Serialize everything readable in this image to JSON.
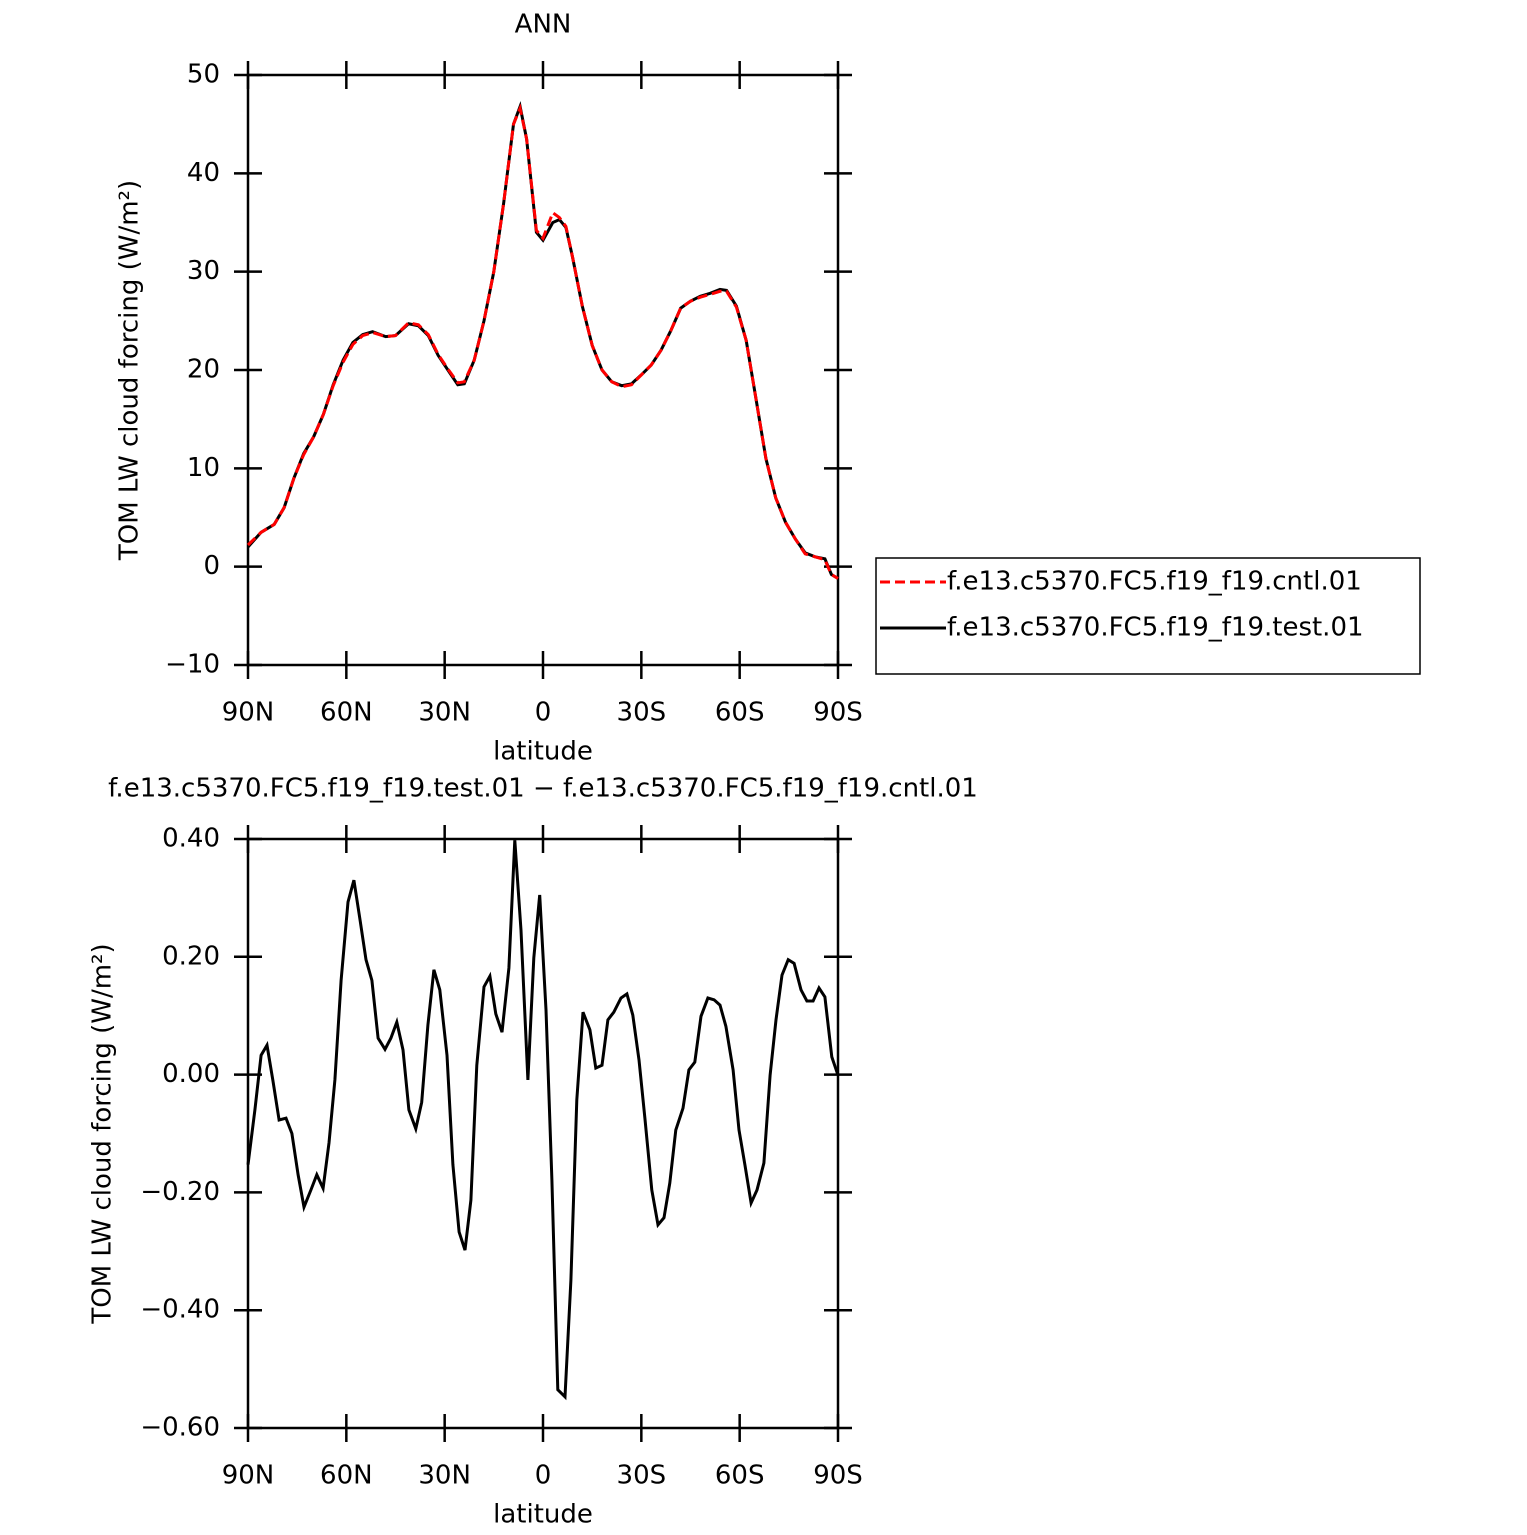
{
  "chart_data": [
    {
      "type": "line",
      "title": "ANN",
      "xlabel": "latitude",
      "ylabel": "TOM LW cloud forcing (W/m²)",
      "x": [
        90,
        86,
        82,
        79,
        76,
        73,
        70,
        67,
        64,
        61,
        58,
        55,
        52,
        48,
        45,
        41,
        38,
        35,
        32,
        29,
        26,
        24,
        21,
        18,
        15,
        12,
        9,
        7,
        5,
        2,
        0,
        -3,
        -5,
        -7,
        -9,
        -12,
        -15,
        -18,
        -21,
        -24,
        -27,
        -30,
        -33,
        -36,
        -39,
        -42,
        -45,
        -48,
        -51,
        -54,
        -56,
        -59,
        -62,
        -65,
        -68,
        -71,
        -74,
        -77,
        -80,
        -83,
        -86,
        -88,
        -90
      ],
      "series": [
        {
          "name": "f.e13.c5370.FC5.f19_f19.cntl.01",
          "color": "#ff0000",
          "line_style": "dashed",
          "values": [
            2.2,
            3.5,
            4.3,
            6,
            9,
            11.4,
            13.2,
            15.5,
            18.4,
            20.8,
            22.6,
            23.5,
            23.8,
            23.4,
            23.5,
            24.8,
            24.6,
            23.6,
            21.6,
            20.1,
            18.7,
            18.8,
            21,
            25,
            30,
            37,
            45,
            46.6,
            43.5,
            34.2,
            33.4,
            36,
            35.5,
            34.6,
            31.5,
            26.5,
            22.5,
            20,
            18.8,
            18.3,
            18.5,
            19.5,
            20.5,
            22,
            24,
            26.3,
            27,
            27.4,
            27.7,
            28,
            28,
            26.4,
            23,
            17,
            11,
            7,
            4.5,
            2.8,
            1.3,
            1.0,
            0.7,
            -0.8,
            -1.2
          ]
        },
        {
          "name": "f.e13.c5370.FC5.f19_f19.test.01",
          "color": "#000000",
          "line_style": "solid",
          "values": [
            2.0,
            3.5,
            4.3,
            6,
            9,
            11.5,
            13.2,
            15.5,
            18.5,
            21,
            22.8,
            23.6,
            23.9,
            23.4,
            23.5,
            24.7,
            24.5,
            23.5,
            21.5,
            20,
            18.5,
            18.6,
            21,
            25,
            30,
            37,
            45,
            46.8,
            43.5,
            34,
            33.2,
            35,
            35.3,
            34.5,
            31.5,
            26.5,
            22.5,
            20,
            18.8,
            18.4,
            18.6,
            19.5,
            20.5,
            22,
            24,
            26.3,
            27,
            27.5,
            27.8,
            28.2,
            28.1,
            26.5,
            23,
            17,
            11,
            7,
            4.5,
            2.8,
            1.4,
            1.0,
            0.8,
            -0.8,
            -1.2
          ]
        }
      ],
      "xlim": [
        90,
        -90
      ],
      "xticks": [
        {
          "value": 90,
          "label": "90N"
        },
        {
          "value": 60,
          "label": "60N"
        },
        {
          "value": 30,
          "label": "30N"
        },
        0,
        {
          "value": -30,
          "label": "30S"
        },
        {
          "value": -60,
          "label": "60S"
        },
        {
          "value": -90,
          "label": "90S"
        }
      ],
      "ylim": [
        -10,
        50
      ],
      "yticks": [
        {
          "value": -10,
          "label": "−10"
        },
        0,
        10,
        20,
        30,
        40,
        50
      ],
      "legend": "right"
    },
    {
      "type": "line",
      "title": "f.e13.c5370.FC5.f19_f19.test.01  −  f.e13.c5370.FC5.f19_f19.cntl.01",
      "xlabel": "latitude",
      "ylabel": "TOM LW cloud forcing (W/m²)",
      "x": [
        90,
        87.9,
        86,
        84.2,
        82.4,
        80.5,
        78.4,
        76.6,
        74.7,
        72.9,
        70.8,
        69,
        67.1,
        65.3,
        63.5,
        61.6,
        59.5,
        57.7,
        55.8,
        54,
        52.2,
        50.3,
        48.2,
        46.4,
        44.6,
        42.7,
        40.9,
        38.8,
        37,
        35.1,
        33.3,
        31.5,
        29.3,
        27.5,
        25.6,
        23.8,
        22,
        20.2,
        18,
        16.2,
        14.4,
        12.5,
        10.4,
        8.6,
        6.7,
        4.6,
        2.8,
        1,
        -0.9,
        -2.7,
        -4.5,
        -6.7,
        -8.5,
        -10.3,
        -12.2,
        -14.3,
        -16.1,
        -18,
        -19.8,
        -21.6,
        -23.8,
        -25.6,
        -27.4,
        -29.3,
        -31.1,
        -33.2,
        -35.1,
        -36.9,
        -38.7,
        -40.5,
        -42.7,
        -44.5,
        -46.3,
        -48.2,
        -50.3,
        -52.2,
        -54,
        -55.8,
        -58,
        -59.8,
        -61.6,
        -63.5,
        -65.3,
        -67.4,
        -69.3,
        -71.1,
        -72.9,
        -74.8,
        -76.6,
        -78.7,
        -80.5,
        -82.4,
        -84.2,
        -86,
        -88.1,
        -90
      ],
      "series": [
        {
          "color": "#000000",
          "line_style": "solid",
          "values": [
            -0.153,
            -0.06,
            0.033,
            0.05,
            -0.01,
            -0.077,
            -0.074,
            -0.1,
            -0.17,
            -0.225,
            -0.196,
            -0.17,
            -0.193,
            -0.116,
            -0.009,
            0.16,
            0.293,
            0.33,
            0.262,
            0.195,
            0.16,
            0.062,
            0.043,
            0.062,
            0.089,
            0.042,
            -0.06,
            -0.092,
            -0.047,
            0.084,
            0.178,
            0.144,
            0.033,
            -0.153,
            -0.267,
            -0.298,
            -0.213,
            0.016,
            0.149,
            0.167,
            0.103,
            0.072,
            0.181,
            0.398,
            0.245,
            -0.009,
            0.198,
            0.305,
            0.11,
            -0.179,
            -0.535,
            -0.547,
            -0.349,
            -0.043,
            0.106,
            0.076,
            0.011,
            0.016,
            0.093,
            0.106,
            0.13,
            0.137,
            0.101,
            0.025,
            -0.074,
            -0.196,
            -0.255,
            -0.243,
            -0.184,
            -0.094,
            -0.057,
            0.008,
            0.021,
            0.099,
            0.13,
            0.127,
            0.118,
            0.082,
            0.008,
            -0.094,
            -0.153,
            -0.218,
            -0.196,
            -0.15,
            -0.001,
            0.093,
            0.169,
            0.195,
            0.189,
            0.144,
            0.125,
            0.125,
            0.147,
            0.132,
            0.03,
            -0.001
          ]
        }
      ],
      "xlim": [
        90,
        -90
      ],
      "xticks": [
        {
          "value": 90,
          "label": "90N"
        },
        {
          "value": 60,
          "label": "60N"
        },
        {
          "value": 30,
          "label": "30N"
        },
        0,
        {
          "value": -30,
          "label": "30S"
        },
        {
          "value": -60,
          "label": "60S"
        },
        {
          "value": -90,
          "label": "90S"
        }
      ],
      "ylim": [
        -0.6,
        0.4
      ],
      "yticks": [
        {
          "value": -0.6,
          "label": "−0.60"
        },
        {
          "value": -0.4,
          "label": "−0.40"
        },
        {
          "value": -0.2,
          "label": "−0.20"
        },
        {
          "value": 0,
          "label": "0.00"
        },
        {
          "value": 0.2,
          "label": "0.20"
        },
        {
          "value": 0.4,
          "label": "0.40"
        }
      ]
    }
  ]
}
